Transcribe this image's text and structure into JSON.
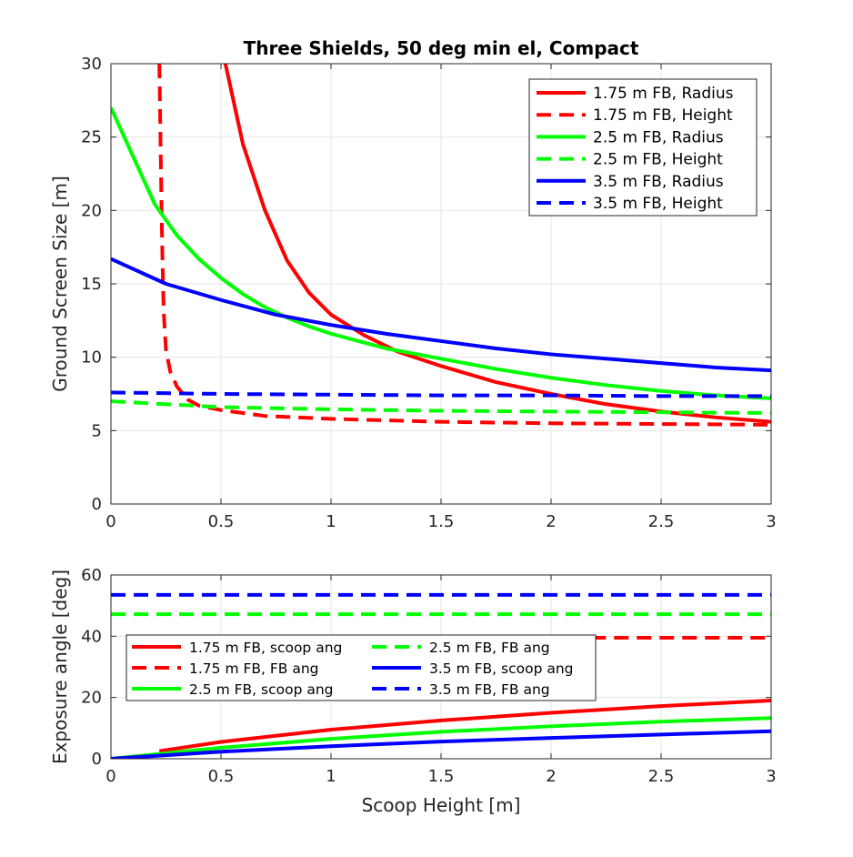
{
  "chart_data": [
    {
      "type": "line",
      "title": "Three Shields, 50 deg min el, Compact",
      "xlabel": "",
      "ylabel": "Ground Screen Size [m]",
      "xlim": [
        0,
        3
      ],
      "ylim": [
        0,
        30
      ],
      "xticks": [
        "0",
        "0.5",
        "1",
        "1.5",
        "2",
        "2.5",
        "3"
      ],
      "yticks": [
        "0",
        "5",
        "10",
        "15",
        "20",
        "25",
        "30"
      ],
      "grid": true,
      "legend_position": "top-right",
      "series": [
        {
          "name": "1.75 m FB, Radius",
          "color": "#ff0000",
          "style": "solid",
          "x": [
            0.52,
            0.6,
            0.7,
            0.8,
            0.9,
            1.0,
            1.15,
            1.3,
            1.5,
            1.75,
            2.0,
            2.25,
            2.5,
            2.75,
            3.0
          ],
          "y": [
            30,
            24.5,
            20,
            16.6,
            14.4,
            12.9,
            11.5,
            10.4,
            9.4,
            8.3,
            7.5,
            6.8,
            6.3,
            5.9,
            5.6
          ]
        },
        {
          "name": "1.75 m FB, Height",
          "color": "#ff0000",
          "style": "dashed",
          "x": [
            0.22,
            0.225,
            0.23,
            0.235,
            0.24,
            0.25,
            0.27,
            0.3,
            0.35,
            0.4,
            0.5,
            0.7,
            1.0,
            1.5,
            2.0,
            2.5,
            3.0
          ],
          "y": [
            30,
            25,
            20,
            16,
            13,
            10.5,
            9,
            8,
            7.1,
            6.7,
            6.4,
            6.0,
            5.8,
            5.6,
            5.5,
            5.45,
            5.4
          ]
        },
        {
          "name": "2.5 m FB, Radius",
          "color": "#00ff00",
          "style": "solid",
          "x": [
            0,
            0.1,
            0.2,
            0.3,
            0.4,
            0.5,
            0.6,
            0.7,
            0.8,
            0.9,
            1.0,
            1.25,
            1.5,
            1.75,
            2.0,
            2.25,
            2.5,
            2.75,
            3.0
          ],
          "y": [
            27,
            23.7,
            20.4,
            18.3,
            16.7,
            15.4,
            14.3,
            13.4,
            12.7,
            12.1,
            11.6,
            10.6,
            9.9,
            9.2,
            8.6,
            8.1,
            7.7,
            7.4,
            7.2
          ]
        },
        {
          "name": "2.5 m FB, Height",
          "color": "#00ff00",
          "style": "dashed",
          "x": [
            0,
            0.5,
            1.0,
            1.5,
            2.0,
            2.5,
            3.0
          ],
          "y": [
            7.0,
            6.6,
            6.45,
            6.35,
            6.3,
            6.25,
            6.2
          ]
        },
        {
          "name": "3.5 m FB, Radius",
          "color": "#0000ff",
          "style": "solid",
          "x": [
            0,
            0.25,
            0.5,
            0.75,
            1.0,
            1.25,
            1.5,
            1.75,
            2.0,
            2.25,
            2.5,
            2.75,
            3.0
          ],
          "y": [
            16.7,
            15.0,
            13.9,
            12.9,
            12.2,
            11.6,
            11.1,
            10.6,
            10.2,
            9.9,
            9.6,
            9.3,
            9.1
          ]
        },
        {
          "name": "3.5 m FB, Height",
          "color": "#0000ff",
          "style": "dashed",
          "x": [
            0,
            0.5,
            1.0,
            1.5,
            2.0,
            2.5,
            3.0
          ],
          "y": [
            7.6,
            7.5,
            7.45,
            7.4,
            7.4,
            7.35,
            7.35
          ]
        }
      ]
    },
    {
      "type": "line",
      "title": "",
      "xlabel": "Scoop Height [m]",
      "ylabel": "Exposure angle [deg]",
      "xlim": [
        0,
        3
      ],
      "ylim": [
        0,
        60
      ],
      "xticks": [
        "0",
        "0.5",
        "1",
        "1.5",
        "2",
        "2.5",
        "3"
      ],
      "yticks": [
        "0",
        "20",
        "40",
        "60"
      ],
      "grid": true,
      "legend_position": "center-left",
      "legend_columns": 2,
      "series": [
        {
          "name": "1.75 m FB, scoop ang",
          "color": "#ff0000",
          "style": "solid",
          "x": [
            0.22,
            0.5,
            1.0,
            1.5,
            2.0,
            2.5,
            3.0
          ],
          "y": [
            2.5,
            5.5,
            9.5,
            12.5,
            15.0,
            17.2,
            19.0
          ]
        },
        {
          "name": "1.75 m FB, FB ang",
          "color": "#ff0000",
          "style": "dashed",
          "x": [
            0.22,
            3.0
          ],
          "y": [
            39.5,
            39.5
          ]
        },
        {
          "name": "2.5 m FB, scoop ang",
          "color": "#00ff00",
          "style": "solid",
          "x": [
            0,
            0.5,
            1.0,
            1.5,
            2.0,
            2.5,
            3.0
          ],
          "y": [
            0,
            3.6,
            6.5,
            8.8,
            10.6,
            12.1,
            13.3
          ]
        },
        {
          "name": "2.5 m FB, FB ang",
          "color": "#00ff00",
          "style": "dashed",
          "x": [
            0,
            3.0
          ],
          "y": [
            47.2,
            47.2
          ]
        },
        {
          "name": "3.5 m FB, scoop ang",
          "color": "#0000ff",
          "style": "solid",
          "x": [
            0,
            0.5,
            1.0,
            1.5,
            2.0,
            2.5,
            3.0
          ],
          "y": [
            0,
            2.3,
            4.1,
            5.6,
            6.8,
            7.9,
            9.0
          ]
        },
        {
          "name": "3.5 m FB, FB ang",
          "color": "#0000ff",
          "style": "dashed",
          "x": [
            0,
            3.0
          ],
          "y": [
            53.5,
            53.5
          ]
        }
      ]
    }
  ]
}
